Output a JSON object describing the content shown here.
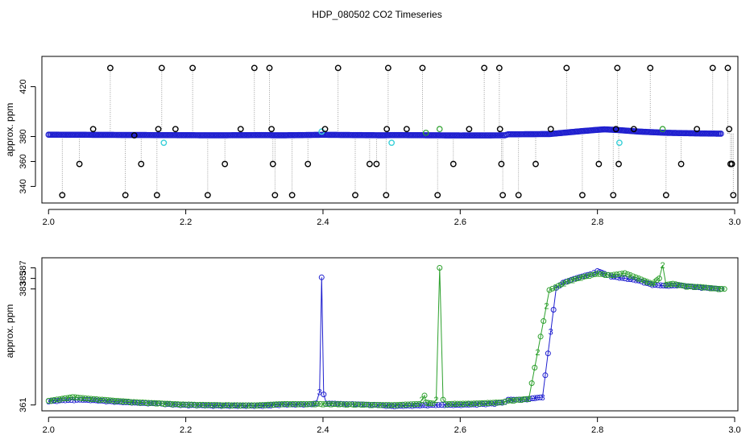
{
  "chart_data": [
    {
      "type": "scatter",
      "title": "HDP_080502  CO2 Timeseries",
      "xlabel": "",
      "ylabel": "approx. ppm",
      "xlim": [
        1.995,
        3.0
      ],
      "ylim": [
        328,
        443
      ],
      "xticks": [
        "2.0",
        "2.2",
        "2.4",
        "2.6",
        "2.8",
        "3.0"
      ],
      "yticks": [
        "340",
        "360",
        "380",
        "420"
      ],
      "grid": false,
      "colors": {
        "main": "#1f1fcf",
        "outlier": "#000000",
        "cyan": "#39d0d8",
        "green": "#2ca02c",
        "drop": "#888888"
      },
      "series": [
        {
          "points": [
            [
              2.0,
              381.5
            ],
            [
              2.1,
              381.3
            ],
            [
              2.16,
              381.2
            ],
            [
              2.24,
              381.0
            ],
            [
              2.32,
              381.2
            ],
            [
              2.328,
              381.0
            ],
            [
              2.34,
              381.0
            ],
            [
              2.4,
              381.4
            ],
            [
              2.49,
              381.0
            ],
            [
              2.5,
              381.2
            ],
            [
              2.6,
              380.9
            ],
            [
              2.665,
              381.0
            ],
            [
              2.67,
              381.8
            ],
            [
              2.73,
              382.0
            ],
            [
              2.78,
              384.5
            ],
            [
              2.81,
              385.8
            ],
            [
              2.83,
              385.2
            ],
            [
              2.86,
              384.0
            ],
            [
              2.9,
              383.0
            ],
            [
              2.95,
              382.5
            ],
            [
              2.98,
              382.3
            ]
          ]
        }
      ],
      "outliers": [
        [
          2.02,
          333
        ],
        [
          2.045,
          358
        ],
        [
          2.065,
          386
        ],
        [
          2.09,
          435
        ],
        [
          2.112,
          333
        ],
        [
          2.125,
          381
        ],
        [
          2.135,
          358
        ],
        [
          2.158,
          333
        ],
        [
          2.16,
          386
        ],
        [
          2.165,
          435
        ],
        [
          2.185,
          386
        ],
        [
          2.21,
          435
        ],
        [
          2.232,
          333
        ],
        [
          2.257,
          358
        ],
        [
          2.28,
          386
        ],
        [
          2.3,
          435
        ],
        [
          2.322,
          435
        ],
        [
          2.325,
          386
        ],
        [
          2.327,
          358
        ],
        [
          2.33,
          333
        ],
        [
          2.355,
          333
        ],
        [
          2.378,
          358
        ],
        [
          2.403,
          386
        ],
        [
          2.422,
          435
        ],
        [
          2.447,
          333
        ],
        [
          2.468,
          358
        ],
        [
          2.478,
          358
        ],
        [
          2.492,
          333
        ],
        [
          2.493,
          386
        ],
        [
          2.495,
          435
        ],
        [
          2.522,
          386
        ],
        [
          2.545,
          435
        ],
        [
          2.567,
          333
        ],
        [
          2.59,
          358
        ],
        [
          2.613,
          386
        ],
        [
          2.635,
          435
        ],
        [
          2.657,
          435
        ],
        [
          2.658,
          386
        ],
        [
          2.66,
          358
        ],
        [
          2.662,
          333
        ],
        [
          2.685,
          333
        ],
        [
          2.71,
          358
        ],
        [
          2.732,
          386
        ],
        [
          2.755,
          435
        ],
        [
          2.778,
          333
        ],
        [
          2.802,
          358
        ],
        [
          2.823,
          333
        ],
        [
          2.827,
          386
        ],
        [
          2.829,
          435
        ],
        [
          2.831,
          358
        ],
        [
          2.853,
          386
        ],
        [
          2.877,
          435
        ],
        [
          2.9,
          333
        ],
        [
          2.922,
          358
        ],
        [
          2.945,
          386
        ],
        [
          2.968,
          435
        ],
        [
          2.99,
          435
        ],
        [
          2.992,
          386
        ],
        [
          2.994,
          358
        ],
        [
          2.996,
          358
        ],
        [
          2.998,
          333
        ]
      ],
      "cyan_points": [
        [
          2.168,
          375
        ],
        [
          2.398,
          384
        ],
        [
          2.5,
          375
        ],
        [
          2.832,
          375
        ]
      ],
      "green_points": [
        [
          2.55,
          383
        ],
        [
          2.57,
          386
        ],
        [
          2.895,
          386
        ]
      ]
    },
    {
      "type": "line",
      "xlabel": "",
      "ylabel": "approx. ppm",
      "xlim": [
        1.995,
        3.0
      ],
      "ylim": [
        360.5,
        388.3
      ],
      "xticks": [
        "2.0",
        "2.2",
        "2.4",
        "2.6",
        "2.8",
        "3.0"
      ],
      "yticks": [
        "361",
        "383",
        "385",
        "387"
      ],
      "grid": false,
      "series": [
        {
          "marker": "3",
          "color": "#1f1fcf",
          "points": [
            [
              2.0,
              361.7
            ],
            [
              2.02,
              361.9
            ],
            [
              2.05,
              362.0
            ],
            [
              2.08,
              361.8
            ],
            [
              2.1,
              361.6
            ],
            [
              2.13,
              361.4
            ],
            [
              2.16,
              361.3
            ],
            [
              2.17,
              361.2
            ],
            [
              2.2,
              361.0
            ],
            [
              2.24,
              360.9
            ],
            [
              2.28,
              360.85
            ],
            [
              2.32,
              360.9
            ],
            [
              2.328,
              361.0
            ],
            [
              2.34,
              361.1
            ],
            [
              2.36,
              361.1
            ],
            [
              2.38,
              361.15
            ],
            [
              2.39,
              361.3
            ],
            [
              2.395,
              363.5
            ],
            [
              2.398,
              385.2
            ],
            [
              2.401,
              363.0
            ],
            [
              2.405,
              361.3
            ],
            [
              2.43,
              361.2
            ],
            [
              2.46,
              361.1
            ],
            [
              2.48,
              361.0
            ],
            [
              2.5,
              360.8
            ],
            [
              2.53,
              360.9
            ],
            [
              2.56,
              361.0
            ],
            [
              2.59,
              361.0
            ],
            [
              2.62,
              361.1
            ],
            [
              2.65,
              361.3
            ],
            [
              2.665,
              361.6
            ],
            [
              2.67,
              362.0
            ],
            [
              2.69,
              362.0
            ],
            [
              2.72,
              362.5
            ],
            [
              2.74,
              383.2
            ],
            [
              2.75,
              384.2
            ],
            [
              2.77,
              385.1
            ],
            [
              2.79,
              385.8
            ],
            [
              2.8,
              386.4
            ],
            [
              2.81,
              385.9
            ],
            [
              2.82,
              385.4
            ],
            [
              2.84,
              385.0
            ],
            [
              2.86,
              384.6
            ],
            [
              2.88,
              383.8
            ],
            [
              2.9,
              383.6
            ],
            [
              2.92,
              383.7
            ],
            [
              2.94,
              383.4
            ],
            [
              2.96,
              383.2
            ],
            [
              2.98,
              383.0
            ]
          ]
        },
        {
          "marker": "2",
          "color": "#2ca02c",
          "points": [
            [
              2.0,
              361.8
            ],
            [
              2.02,
              362.2
            ],
            [
              2.035,
              362.5
            ],
            [
              2.05,
              362.3
            ],
            [
              2.07,
              362.1
            ],
            [
              2.09,
              361.9
            ],
            [
              2.12,
              361.6
            ],
            [
              2.15,
              361.4
            ],
            [
              2.2,
              361.1
            ],
            [
              2.25,
              361.0
            ],
            [
              2.3,
              360.95
            ],
            [
              2.34,
              361.2
            ],
            [
              2.4,
              361.2
            ],
            [
              2.45,
              361.1
            ],
            [
              2.5,
              361.0
            ],
            [
              2.54,
              361.2
            ],
            [
              2.548,
              362.8
            ],
            [
              2.55,
              361.5
            ],
            [
              2.56,
              361.3
            ],
            [
              2.565,
              362.0
            ],
            [
              2.57,
              387.0
            ],
            [
              2.575,
              362.0
            ],
            [
              2.58,
              361.2
            ],
            [
              2.62,
              361.3
            ],
            [
              2.66,
              361.5
            ],
            [
              2.67,
              361.8
            ],
            [
              2.7,
              362.2
            ],
            [
              2.73,
              382.8
            ],
            [
              2.76,
              384.6
            ],
            [
              2.78,
              385.3
            ],
            [
              2.8,
              385.9
            ],
            [
              2.82,
              385.6
            ],
            [
              2.84,
              386.0
            ],
            [
              2.86,
              385.0
            ],
            [
              2.88,
              384.0
            ],
            [
              2.89,
              385.0
            ],
            [
              2.895,
              387.5
            ],
            [
              2.9,
              383.8
            ],
            [
              2.91,
              384.0
            ],
            [
              2.93,
              383.5
            ],
            [
              2.95,
              383.4
            ],
            [
              2.97,
              383.1
            ],
            [
              2.985,
              383.0
            ]
          ]
        }
      ]
    }
  ]
}
